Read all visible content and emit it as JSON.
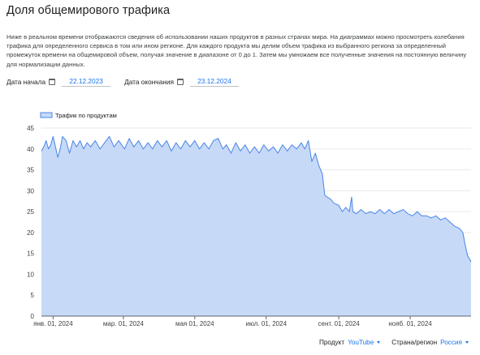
{
  "header": {
    "title": "Доля общемирового трафика",
    "description": "Ниже в реальном времени отображаются сведения об использовании наших продуктов в разных странах мира. На диаграммах можно просмотреть колебания трафика для определенного сервиса в том или ином регионе. Для каждого продукта мы делим объем трафика из выбранного региона за определенный промежуток времени на общемировой объем, получая значение в диапазоне от 0 до 1. Затем мы умножаем все полученные значения на постоянную величину для нормализации данных."
  },
  "date_range": {
    "start_label": "Дата начала",
    "start_value": "22.12.2023",
    "end_label": "Дата окончания",
    "end_value": "23.12.2024",
    "calendar_icon": "calendar-icon"
  },
  "filters": {
    "product_label": "Продукт",
    "product_value": "YouTube",
    "region_label": "Страна/регион",
    "region_value": "Россия",
    "dropdown_icon": "caret-down-icon"
  },
  "chart_data": {
    "type": "area",
    "legend": [
      "Трафик по продуктам"
    ],
    "legend_position": "top-left",
    "grid": true,
    "ylim": [
      0,
      45
    ],
    "yticks": [
      0,
      5,
      10,
      15,
      20,
      25,
      30,
      35,
      40,
      45
    ],
    "xlim": [
      "2023-12-22",
      "2024-12-23"
    ],
    "xticks": [
      {
        "date": "2024-01-01",
        "label": "янв. 01, 2024"
      },
      {
        "date": "2024-03-01",
        "label": "мар. 01, 2024"
      },
      {
        "date": "2024-05-01",
        "label": "мая 01, 2024"
      },
      {
        "date": "2024-07-01",
        "label": "июл. 01, 2024"
      },
      {
        "date": "2024-09-01",
        "label": "сент. 01, 2024"
      },
      {
        "date": "2024-11-01",
        "label": "нояб. 01, 2024"
      }
    ],
    "colors": {
      "line": "#4a86e8",
      "fill": "#c6d9f7",
      "grid": "#e8eaed",
      "axis": "#5f6368"
    },
    "series": [
      {
        "name": "Трафик по продуктам",
        "points": [
          [
            "2023-12-22",
            39.5
          ],
          [
            "2023-12-24",
            40.5
          ],
          [
            "2023-12-26",
            42
          ],
          [
            "2023-12-28",
            40
          ],
          [
            "2023-12-30",
            41
          ],
          [
            "2024-01-01",
            43
          ],
          [
            "2024-01-03",
            40.5
          ],
          [
            "2024-01-05",
            38
          ],
          [
            "2024-01-07",
            40
          ],
          [
            "2024-01-09",
            43
          ],
          [
            "2024-01-12",
            42
          ],
          [
            "2024-01-15",
            39
          ],
          [
            "2024-01-18",
            42
          ],
          [
            "2024-01-21",
            40.5
          ],
          [
            "2024-01-24",
            42
          ],
          [
            "2024-01-27",
            40
          ],
          [
            "2024-01-30",
            41.5
          ],
          [
            "2024-02-02",
            40.5
          ],
          [
            "2024-02-06",
            42
          ],
          [
            "2024-02-10",
            40
          ],
          [
            "2024-02-14",
            41.5
          ],
          [
            "2024-02-18",
            43
          ],
          [
            "2024-02-22",
            40.5
          ],
          [
            "2024-02-26",
            42
          ],
          [
            "2024-03-02",
            40
          ],
          [
            "2024-03-06",
            42.5
          ],
          [
            "2024-03-10",
            40.5
          ],
          [
            "2024-03-14",
            42
          ],
          [
            "2024-03-18",
            40
          ],
          [
            "2024-03-22",
            41.5
          ],
          [
            "2024-03-26",
            40
          ],
          [
            "2024-03-30",
            42
          ],
          [
            "2024-04-03",
            40.5
          ],
          [
            "2024-04-07",
            42
          ],
          [
            "2024-04-11",
            39.5
          ],
          [
            "2024-04-15",
            41.5
          ],
          [
            "2024-04-19",
            40
          ],
          [
            "2024-04-23",
            42
          ],
          [
            "2024-04-27",
            40.5
          ],
          [
            "2024-05-01",
            42
          ],
          [
            "2024-05-05",
            40
          ],
          [
            "2024-05-09",
            41.5
          ],
          [
            "2024-05-13",
            40
          ],
          [
            "2024-05-17",
            42
          ],
          [
            "2024-05-21",
            42.5
          ],
          [
            "2024-05-25",
            40
          ],
          [
            "2024-05-28",
            41
          ],
          [
            "2024-06-01",
            39
          ],
          [
            "2024-06-05",
            41.5
          ],
          [
            "2024-06-09",
            39.5
          ],
          [
            "2024-06-13",
            41
          ],
          [
            "2024-06-17",
            39
          ],
          [
            "2024-06-21",
            40.5
          ],
          [
            "2024-06-25",
            39
          ],
          [
            "2024-06-29",
            41
          ],
          [
            "2024-07-03",
            39.5
          ],
          [
            "2024-07-07",
            40.5
          ],
          [
            "2024-07-11",
            39
          ],
          [
            "2024-07-15",
            41
          ],
          [
            "2024-07-19",
            39.5
          ],
          [
            "2024-07-23",
            41
          ],
          [
            "2024-07-27",
            40
          ],
          [
            "2024-07-31",
            41.5
          ],
          [
            "2024-08-03",
            40
          ],
          [
            "2024-08-06",
            42
          ],
          [
            "2024-08-09",
            37
          ],
          [
            "2024-08-12",
            39
          ],
          [
            "2024-08-15",
            36
          ],
          [
            "2024-08-18",
            34
          ],
          [
            "2024-08-20",
            29
          ],
          [
            "2024-08-22",
            28.5
          ],
          [
            "2024-08-25",
            28
          ],
          [
            "2024-08-28",
            27
          ],
          [
            "2024-09-01",
            26.5
          ],
          [
            "2024-09-04",
            25
          ],
          [
            "2024-09-07",
            26
          ],
          [
            "2024-09-10",
            25
          ],
          [
            "2024-09-12",
            28.5
          ],
          [
            "2024-09-13",
            25
          ],
          [
            "2024-09-16",
            24.5
          ],
          [
            "2024-09-20",
            25.5
          ],
          [
            "2024-09-24",
            24.5
          ],
          [
            "2024-09-28",
            25
          ],
          [
            "2024-10-02",
            24.5
          ],
          [
            "2024-10-06",
            25.5
          ],
          [
            "2024-10-10",
            24.5
          ],
          [
            "2024-10-14",
            25.5
          ],
          [
            "2024-10-18",
            24.5
          ],
          [
            "2024-10-22",
            25
          ],
          [
            "2024-10-26",
            25.5
          ],
          [
            "2024-10-30",
            24.5
          ],
          [
            "2024-11-03",
            24
          ],
          [
            "2024-11-07",
            25
          ],
          [
            "2024-11-11",
            24
          ],
          [
            "2024-11-15",
            24
          ],
          [
            "2024-11-19",
            23.5
          ],
          [
            "2024-11-23",
            24
          ],
          [
            "2024-11-27",
            23
          ],
          [
            "2024-12-01",
            23.5
          ],
          [
            "2024-12-05",
            22.5
          ],
          [
            "2024-12-09",
            21.5
          ],
          [
            "2024-12-13",
            21
          ],
          [
            "2024-12-16",
            20
          ],
          [
            "2024-12-18",
            17
          ],
          [
            "2024-12-20",
            14.5
          ],
          [
            "2024-12-23",
            13
          ]
        ]
      }
    ]
  }
}
